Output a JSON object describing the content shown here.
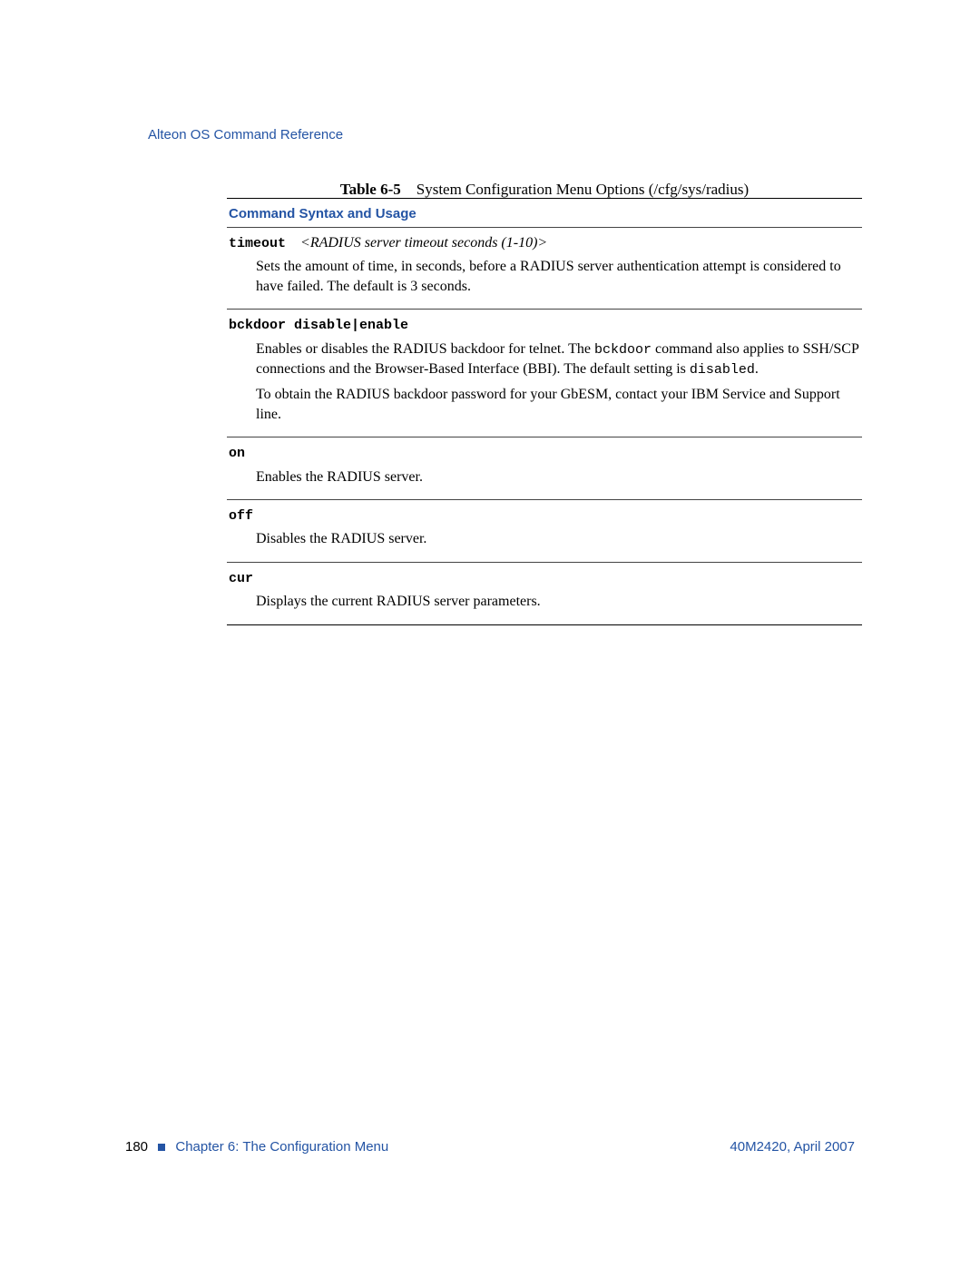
{
  "header": {
    "title": "Alteon OS Command Reference"
  },
  "table": {
    "caption_label": "Table 6-5",
    "caption_text": "System Configuration Menu Options (/cfg/sys/radius)",
    "section_heading": "Command Syntax and Usage",
    "entries": [
      {
        "command": "timeout",
        "arg_open": "<",
        "arg": "RADIUS server timeout seconds (1-10)",
        "arg_close": ">",
        "desc_lines": [
          "Sets the amount of time, in seconds, before a RADIUS server authentication attempt is considered to have failed. The default is 3 seconds."
        ]
      },
      {
        "command": "bckdoor disable|enable",
        "desc_parts_1a": "Enables or disables the RADIUS backdoor for telnet. The ",
        "desc_mono_1": "bckdoor",
        "desc_parts_1b": " command also applies to SSH/SCP connections and the Browser-Based Interface (BBI). The default setting is ",
        "desc_mono_2": "disabled",
        "desc_parts_1c": ".",
        "desc_line_2": "To obtain the RADIUS backdoor password for your GbESM, contact your IBM Service and Support line."
      },
      {
        "command": "on",
        "desc_lines": [
          "Enables the RADIUS server."
        ]
      },
      {
        "command": "off",
        "desc_lines": [
          "Disables the RADIUS server."
        ]
      },
      {
        "command": "cur",
        "desc_lines": [
          "Displays the current RADIUS server parameters."
        ]
      }
    ]
  },
  "footer": {
    "page_number": "180",
    "chapter": "Chapter 6:  The Configuration Menu",
    "docref": "40M2420, April 2007"
  },
  "colors": {
    "brand_blue": "#2454a4",
    "text_black": "#000000",
    "background": "#ffffff"
  }
}
